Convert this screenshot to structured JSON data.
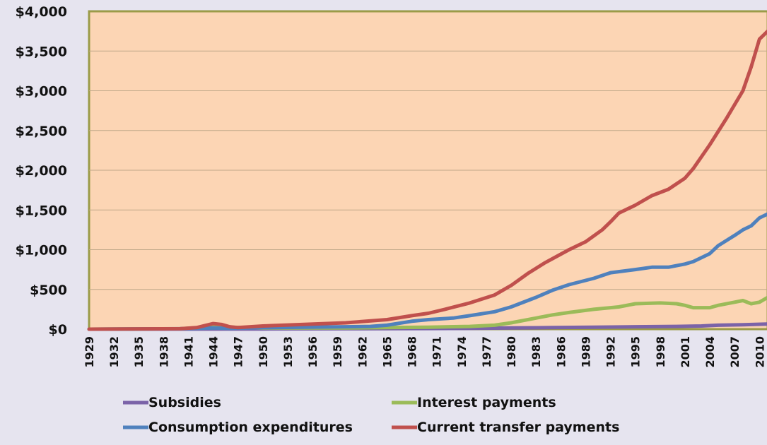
{
  "chart_data": {
    "type": "line",
    "ylim": [
      0,
      4000
    ],
    "y_ticks": [
      "$0",
      "$500",
      "$1,000",
      "$1,500",
      "$2,000",
      "$2,500",
      "$3,000",
      "$3,500",
      "$4,000"
    ],
    "x_ticks": [
      "1929",
      "1932",
      "1935",
      "1938",
      "1941",
      "1944",
      "1947",
      "1950",
      "1953",
      "1956",
      "1959",
      "1962",
      "1965",
      "1968",
      "1971",
      "1974",
      "1977",
      "1980",
      "1983",
      "1986",
      "1989",
      "1992",
      "1995",
      "1998",
      "2001",
      "2004",
      "2007",
      "2010"
    ],
    "x_range": [
      1929,
      2011
    ],
    "grid": true,
    "legend_position": "bottom",
    "plot_bg": "#fcd5b4",
    "plot_border": "#9b9b48",
    "gridline_color": "#bfa888",
    "series": [
      {
        "name": "Subsidies",
        "color": "#7b63a8",
        "points": [
          [
            1929,
            0
          ],
          [
            1940,
            1
          ],
          [
            1950,
            3
          ],
          [
            1960,
            5
          ],
          [
            1970,
            8
          ],
          [
            1975,
            10
          ],
          [
            1980,
            15
          ],
          [
            1985,
            20
          ],
          [
            1990,
            25
          ],
          [
            1995,
            30
          ],
          [
            2000,
            35
          ],
          [
            2003,
            40
          ],
          [
            2005,
            50
          ],
          [
            2008,
            55
          ],
          [
            2011,
            65
          ]
        ]
      },
      {
        "name": "Interest payments",
        "color": "#9bbb59",
        "points": [
          [
            1929,
            0
          ],
          [
            1940,
            5
          ],
          [
            1944,
            30
          ],
          [
            1946,
            25
          ],
          [
            1950,
            15
          ],
          [
            1955,
            15
          ],
          [
            1960,
            15
          ],
          [
            1965,
            20
          ],
          [
            1970,
            25
          ],
          [
            1975,
            35
          ],
          [
            1978,
            50
          ],
          [
            1980,
            80
          ],
          [
            1983,
            140
          ],
          [
            1985,
            180
          ],
          [
            1987,
            210
          ],
          [
            1990,
            250
          ],
          [
            1993,
            280
          ],
          [
            1995,
            320
          ],
          [
            1998,
            330
          ],
          [
            2000,
            320
          ],
          [
            2001,
            300
          ],
          [
            2002,
            270
          ],
          [
            2004,
            270
          ],
          [
            2005,
            300
          ],
          [
            2007,
            340
          ],
          [
            2008,
            360
          ],
          [
            2009,
            320
          ],
          [
            2010,
            340
          ],
          [
            2011,
            400
          ]
        ]
      },
      {
        "name": "Consumption expenditures",
        "color": "#4f81bd",
        "points": [
          [
            1929,
            0
          ],
          [
            1940,
            5
          ],
          [
            1944,
            15
          ],
          [
            1946,
            10
          ],
          [
            1950,
            20
          ],
          [
            1955,
            25
          ],
          [
            1960,
            30
          ],
          [
            1963,
            35
          ],
          [
            1965,
            50
          ],
          [
            1968,
            100
          ],
          [
            1970,
            120
          ],
          [
            1973,
            140
          ],
          [
            1975,
            170
          ],
          [
            1978,
            220
          ],
          [
            1980,
            280
          ],
          [
            1983,
            400
          ],
          [
            1985,
            490
          ],
          [
            1987,
            560
          ],
          [
            1990,
            640
          ],
          [
            1992,
            710
          ],
          [
            1995,
            750
          ],
          [
            1997,
            780
          ],
          [
            1999,
            780
          ],
          [
            2001,
            820
          ],
          [
            2002,
            850
          ],
          [
            2004,
            950
          ],
          [
            2005,
            1050
          ],
          [
            2007,
            1180
          ],
          [
            2008,
            1250
          ],
          [
            2009,
            1300
          ],
          [
            2010,
            1400
          ],
          [
            2011,
            1450
          ]
        ]
      },
      {
        "name": "Current transfer payments",
        "color": "#c0504d",
        "points": [
          [
            1929,
            0
          ],
          [
            1940,
            5
          ],
          [
            1942,
            20
          ],
          [
            1944,
            70
          ],
          [
            1945,
            60
          ],
          [
            1946,
            30
          ],
          [
            1947,
            20
          ],
          [
            1950,
            40
          ],
          [
            1955,
            60
          ],
          [
            1960,
            80
          ],
          [
            1965,
            120
          ],
          [
            1968,
            170
          ],
          [
            1970,
            200
          ],
          [
            1972,
            250
          ],
          [
            1975,
            330
          ],
          [
            1978,
            430
          ],
          [
            1980,
            550
          ],
          [
            1982,
            700
          ],
          [
            1984,
            830
          ],
          [
            1987,
            1000
          ],
          [
            1989,
            1100
          ],
          [
            1991,
            1250
          ],
          [
            1992,
            1350
          ],
          [
            1993,
            1460
          ],
          [
            1995,
            1560
          ],
          [
            1997,
            1680
          ],
          [
            1999,
            1760
          ],
          [
            2001,
            1900
          ],
          [
            2002,
            2020
          ],
          [
            2004,
            2320
          ],
          [
            2006,
            2650
          ],
          [
            2008,
            3000
          ],
          [
            2009,
            3300
          ],
          [
            2010,
            3650
          ],
          [
            2011,
            3750
          ]
        ]
      }
    ]
  }
}
